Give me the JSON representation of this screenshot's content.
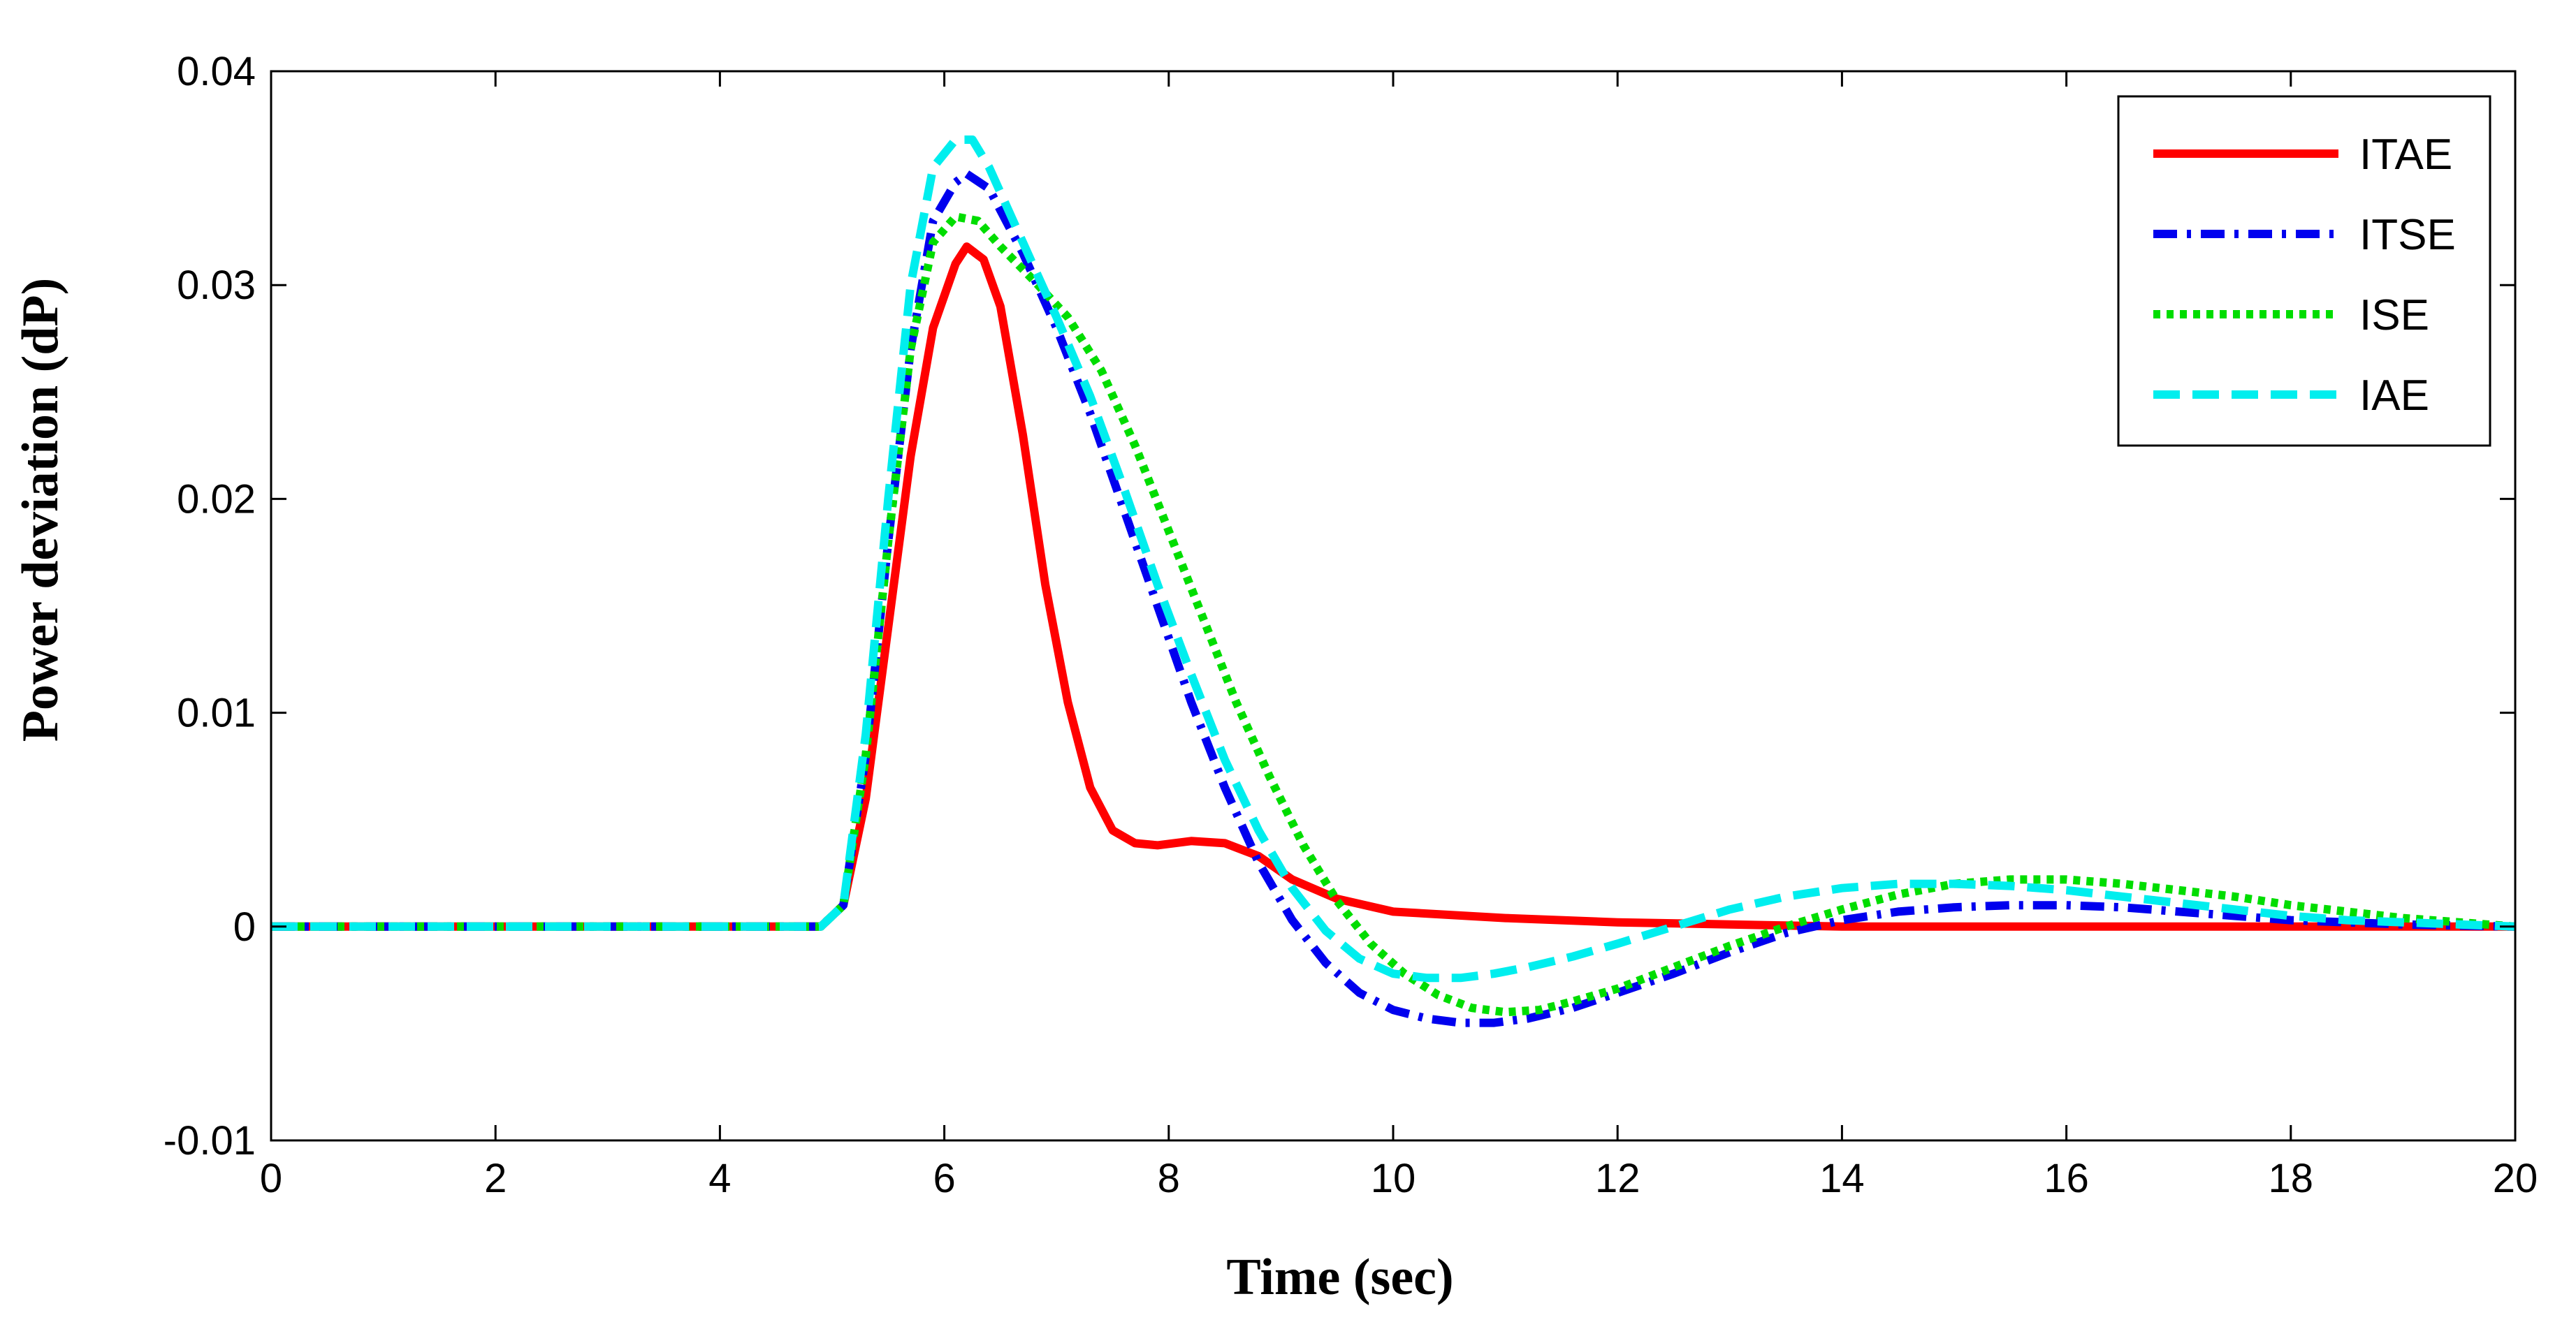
{
  "chart_data": {
    "type": "line",
    "title": "",
    "xlabel": "Time (sec)",
    "ylabel": "Power deviation (dP)",
    "xlim": [
      0,
      20
    ],
    "ylim": [
      -0.01,
      0.04
    ],
    "xticks": [
      0,
      2,
      4,
      6,
      8,
      10,
      12,
      14,
      16,
      18,
      20
    ],
    "yticks": [
      -0.01,
      0,
      0.01,
      0.02,
      0.03,
      0.04
    ],
    "xtick_labels": [
      "0",
      "2",
      "4",
      "6",
      "8",
      "10",
      "12",
      "14",
      "16",
      "18",
      "20"
    ],
    "ytick_labels": [
      "-0.01",
      "0",
      "0.01",
      "0.02",
      "0.03",
      "0.04"
    ],
    "grid": false,
    "legend_position": "top-right",
    "series": [
      {
        "name": "ITAE",
        "color": "#ff0000",
        "style": "solid",
        "x": [
          0,
          4.9,
          5.1,
          5.3,
          5.5,
          5.7,
          5.9,
          6.1,
          6.2,
          6.35,
          6.5,
          6.7,
          6.9,
          7.1,
          7.3,
          7.5,
          7.7,
          7.9,
          8.2,
          8.5,
          8.8,
          9.1,
          9.5,
          10,
          11,
          12,
          13,
          13.5,
          14,
          16,
          18,
          20
        ],
        "values": [
          0,
          0,
          0.001,
          0.006,
          0.014,
          0.022,
          0.028,
          0.031,
          0.0318,
          0.0312,
          0.029,
          0.023,
          0.016,
          0.0105,
          0.0065,
          0.0045,
          0.0039,
          0.0038,
          0.004,
          0.0039,
          0.0033,
          0.0022,
          0.0013,
          0.0007,
          0.0004,
          0.0002,
          0.0001,
          5e-05,
          0,
          0,
          0,
          0
        ]
      },
      {
        "name": "ITSE",
        "color": "#0000ee",
        "style": "dashdot",
        "x": [
          0,
          4.9,
          5.1,
          5.3,
          5.5,
          5.7,
          5.9,
          6.1,
          6.2,
          6.4,
          6.7,
          7.0,
          7.3,
          7.6,
          7.9,
          8.2,
          8.5,
          8.8,
          9.1,
          9.4,
          9.7,
          10.0,
          10.3,
          10.6,
          10.9,
          11.2,
          11.6,
          12.0,
          12.5,
          13.0,
          13.5,
          14.0,
          14.5,
          15.0,
          15.5,
          16.0,
          16.5,
          17.0,
          17.5,
          18.0,
          18.5,
          19.0,
          19.5,
          20.0
        ],
        "values": [
          0,
          0,
          0.001,
          0.008,
          0.018,
          0.027,
          0.033,
          0.0348,
          0.0352,
          0.0345,
          0.0315,
          0.028,
          0.024,
          0.0195,
          0.015,
          0.0105,
          0.0065,
          0.003,
          0.0003,
          -0.0017,
          -0.0031,
          -0.0039,
          -0.0043,
          -0.0045,
          -0.0045,
          -0.0043,
          -0.0038,
          -0.0031,
          -0.0022,
          -0.0012,
          -0.0003,
          0.0003,
          0.0007,
          0.0009,
          0.001,
          0.001,
          0.0009,
          0.0007,
          0.0005,
          0.0003,
          0.0002,
          0.0001,
          5e-05,
          0
        ]
      },
      {
        "name": "ISE",
        "color": "#00dd00",
        "style": "dotted",
        "x": [
          0,
          4.9,
          5.1,
          5.3,
          5.5,
          5.7,
          5.9,
          6.1,
          6.3,
          6.5,
          6.8,
          7.1,
          7.4,
          7.7,
          8.0,
          8.3,
          8.6,
          8.9,
          9.2,
          9.5,
          9.8,
          10.1,
          10.4,
          10.7,
          11.0,
          11.3,
          11.6,
          12.0,
          12.5,
          13.0,
          13.5,
          14.0,
          14.5,
          15.0,
          15.5,
          16.0,
          16.5,
          17.0,
          17.5,
          18.0,
          18.5,
          19.0,
          19.5,
          20.0
        ],
        "values": [
          0,
          0,
          0.001,
          0.008,
          0.018,
          0.027,
          0.032,
          0.0332,
          0.033,
          0.0318,
          0.0302,
          0.0285,
          0.026,
          0.0225,
          0.0185,
          0.0145,
          0.0105,
          0.007,
          0.0038,
          0.0012,
          -0.0008,
          -0.0022,
          -0.0032,
          -0.0038,
          -0.004,
          -0.0039,
          -0.0035,
          -0.0029,
          -0.0019,
          -0.0009,
          0,
          0.0008,
          0.0015,
          0.002,
          0.0022,
          0.0022,
          0.002,
          0.0017,
          0.0014,
          0.001,
          0.0007,
          0.0004,
          0.0002,
          0
        ]
      },
      {
        "name": "IAE",
        "color": "#00eeee",
        "style": "dashed",
        "x": [
          0,
          4.9,
          5.1,
          5.3,
          5.5,
          5.7,
          5.9,
          6.1,
          6.25,
          6.4,
          6.7,
          7.0,
          7.3,
          7.6,
          7.9,
          8.2,
          8.5,
          8.8,
          9.1,
          9.4,
          9.7,
          10.0,
          10.3,
          10.6,
          10.9,
          11.2,
          11.6,
          12.0,
          12.5,
          13.0,
          13.5,
          14.0,
          14.5,
          15.0,
          15.5,
          16.0,
          16.5,
          17.0,
          17.5,
          18.0,
          18.5,
          19.0,
          19.5,
          20.0
        ],
        "values": [
          0,
          0,
          0.001,
          0.009,
          0.02,
          0.03,
          0.0355,
          0.0368,
          0.0368,
          0.0355,
          0.032,
          0.0285,
          0.0248,
          0.0205,
          0.016,
          0.0118,
          0.0078,
          0.0045,
          0.0018,
          -0.0002,
          -0.0015,
          -0.0022,
          -0.0024,
          -0.0024,
          -0.0022,
          -0.0019,
          -0.0014,
          -0.0008,
          0,
          0.0008,
          0.0014,
          0.0018,
          0.002,
          0.002,
          0.0019,
          0.0017,
          0.0014,
          0.0011,
          0.0008,
          0.0005,
          0.0003,
          0.0002,
          0.0001,
          0
        ]
      }
    ]
  }
}
